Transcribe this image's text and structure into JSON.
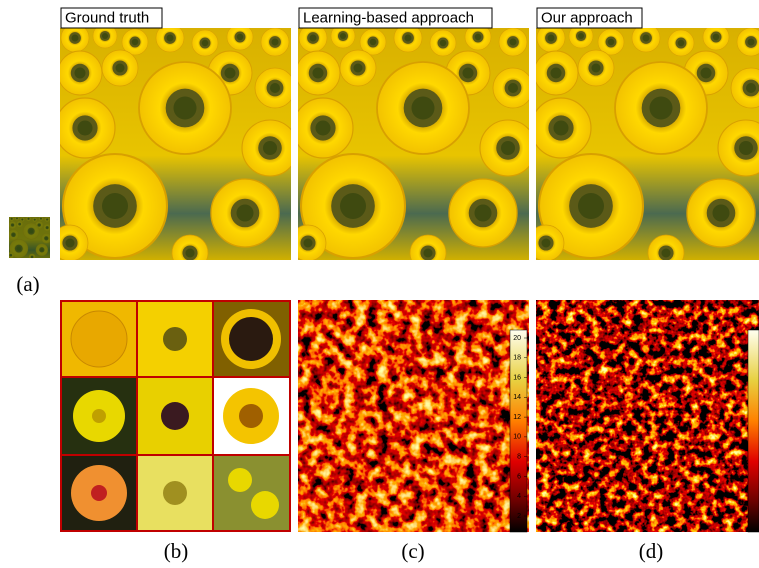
{
  "header": {
    "labels": [
      "Ground truth",
      "Learning-based approach",
      "Our approach"
    ]
  },
  "captions": [
    "(a)",
    "(b)",
    "(c)",
    "(d)"
  ],
  "colorbar": {
    "ticks": [
      20,
      18,
      16,
      14,
      12,
      10,
      8,
      6,
      4,
      2
    ]
  }
}
